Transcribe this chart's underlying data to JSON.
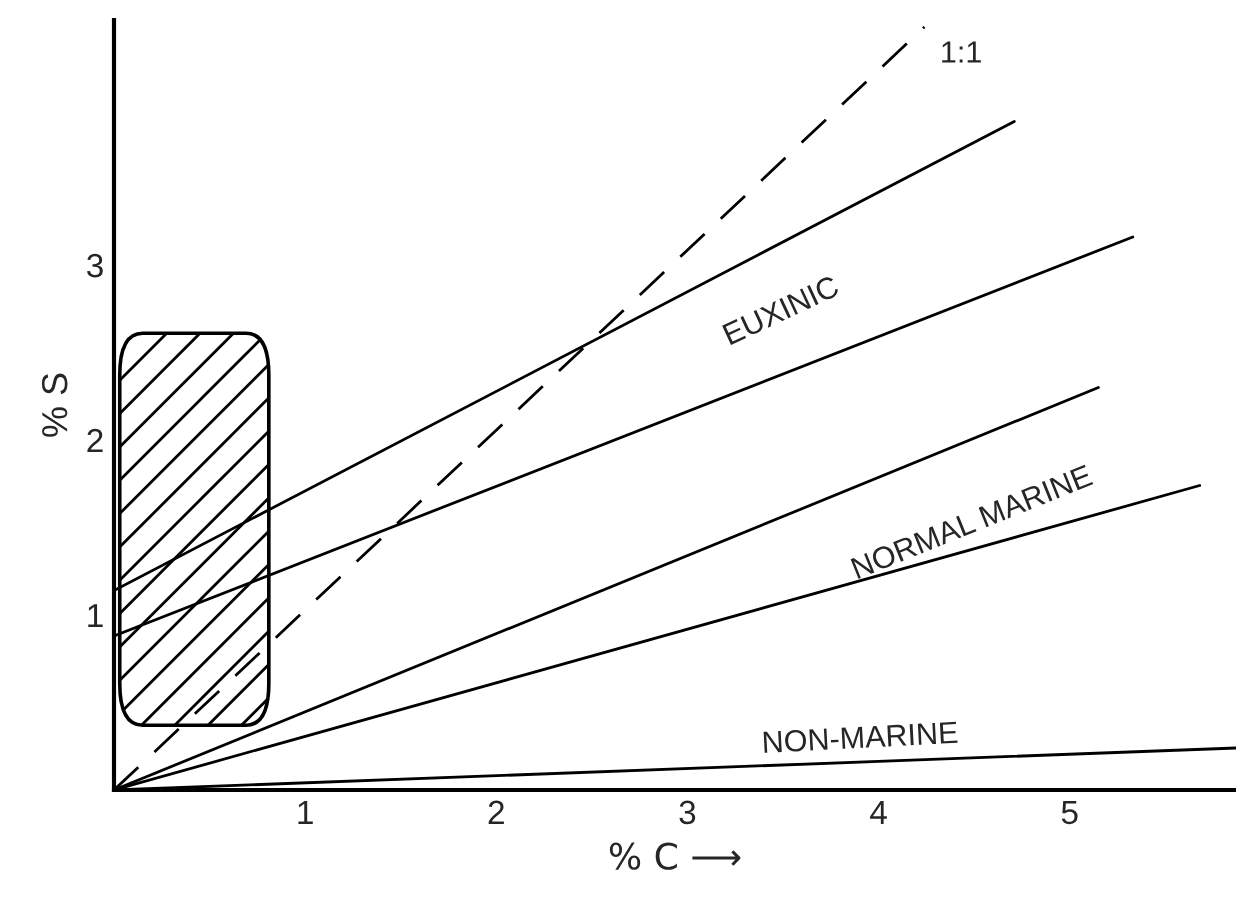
{
  "chart_data": {
    "type": "line",
    "xlabel": "% C ⟶",
    "ylabel": "% S",
    "xlim": [
      0,
      5.87
    ],
    "ylim": [
      0,
      4.4
    ],
    "xticks": [
      1,
      2,
      3,
      4,
      5
    ],
    "yticks": [
      1,
      2,
      3
    ],
    "grid": false,
    "legend": false,
    "marker": "none",
    "series": [
      {
        "color": "#000000",
        "x": [
          0,
          4.24
        ],
        "values": [
          0,
          4.36
        ],
        "line_style": "dashed"
      },
      {
        "color": "#000000",
        "x": [
          0,
          4.71
        ],
        "values": [
          1.14,
          3.82
        ],
        "line_style": "solid"
      },
      {
        "color": "#000000",
        "x": [
          0,
          5.33
        ],
        "values": [
          0.88,
          3.16
        ],
        "line_style": "solid"
      },
      {
        "color": "#000000",
        "x": [
          0,
          5.15
        ],
        "values": [
          0,
          2.3
        ],
        "line_style": "solid"
      },
      {
        "color": "#000000",
        "x": [
          0,
          5.68
        ],
        "values": [
          0,
          1.74
        ],
        "line_style": "solid"
      },
      {
        "color": "#000000",
        "x": [
          0,
          5.87
        ],
        "values": [
          0,
          0.24
        ],
        "line_style": "solid"
      }
    ],
    "annotations": [
      "1:1",
      "EUXINIC",
      "NORMAL MARINE",
      "NON-MARINE"
    ]
  }
}
